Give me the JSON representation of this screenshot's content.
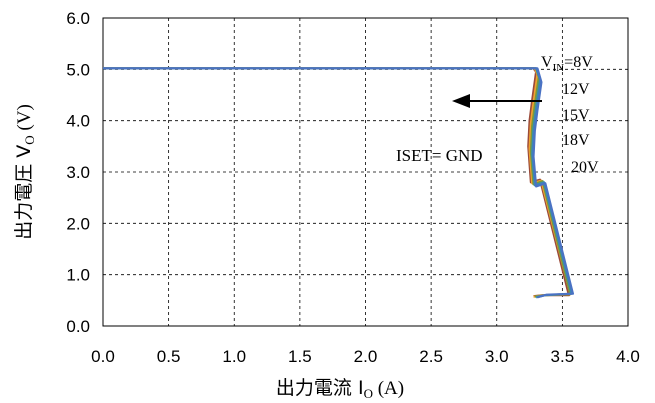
{
  "chart_data": {
    "type": "line",
    "xlabel": "出力電流 Io (A)",
    "xlabel_parts": {
      "main": "出力電流 I",
      "sub": "O",
      "unit": " (A)"
    },
    "ylabel": "出力電圧 Vo (V)",
    "ylabel_parts": {
      "main": "出力電圧  V",
      "sub": "O",
      "unit": " (V)"
    },
    "xlim": [
      0.0,
      4.0
    ],
    "ylim": [
      0.0,
      6.0
    ],
    "xticks": [
      "0.0",
      "0.5",
      "1.0",
      "1.5",
      "2.0",
      "2.5",
      "3.0",
      "3.5",
      "4.0"
    ],
    "yticks": [
      "0.0",
      "1.0",
      "2.0",
      "3.0",
      "4.0",
      "5.0",
      "6.0"
    ],
    "grid": "dashed",
    "series_labels": {
      "vin_prefix": "V",
      "vin_sub": "IN",
      "first": "=8V",
      "others": [
        "12V",
        "15V",
        "18V",
        "20V"
      ]
    },
    "annotation": "ISET= GND",
    "series": [
      {
        "name": "8V",
        "color": "#9B4A3A",
        "x": [
          0.0,
          0.5,
          3.28,
          3.3,
          3.27,
          3.25,
          3.24,
          3.26,
          3.33,
          3.55,
          3.35,
          3.28
        ],
        "y": [
          5.02,
          5.02,
          5.02,
          4.95,
          4.4,
          4.0,
          3.5,
          2.8,
          2.85,
          0.6,
          0.6,
          0.58
        ]
      },
      {
        "name": "12V",
        "color": "#F0A030",
        "x": [
          0.0,
          0.5,
          3.29,
          3.31,
          3.28,
          3.26,
          3.25,
          3.27,
          3.34,
          3.56,
          3.36,
          3.28
        ],
        "y": [
          5.02,
          5.02,
          5.02,
          4.9,
          4.35,
          3.95,
          3.45,
          2.78,
          2.83,
          0.62,
          0.6,
          0.57
        ]
      },
      {
        "name": "15V",
        "color": "#7A9A3A",
        "x": [
          0.0,
          0.5,
          3.3,
          3.32,
          3.29,
          3.27,
          3.26,
          3.28,
          3.35,
          3.56,
          3.37,
          3.29
        ],
        "y": [
          5.02,
          5.02,
          5.02,
          4.85,
          4.3,
          3.9,
          3.4,
          2.76,
          2.82,
          0.62,
          0.6,
          0.57
        ]
      },
      {
        "name": "18V",
        "color": "#3A8AB0",
        "x": [
          0.0,
          0.5,
          3.3,
          3.33,
          3.3,
          3.28,
          3.27,
          3.29,
          3.36,
          3.57,
          3.37,
          3.3
        ],
        "y": [
          5.02,
          5.02,
          5.02,
          4.8,
          4.25,
          3.85,
          3.35,
          2.74,
          2.8,
          0.63,
          0.6,
          0.56
        ]
      },
      {
        "name": "20V",
        "color": "#4A72C4",
        "x": [
          0.0,
          0.5,
          3.31,
          3.34,
          3.31,
          3.29,
          3.28,
          3.3,
          3.37,
          3.58,
          3.38,
          3.31
        ],
        "y": [
          5.02,
          5.02,
          5.02,
          4.75,
          4.2,
          3.8,
          3.3,
          2.72,
          2.78,
          0.63,
          0.61,
          0.56
        ]
      }
    ]
  }
}
